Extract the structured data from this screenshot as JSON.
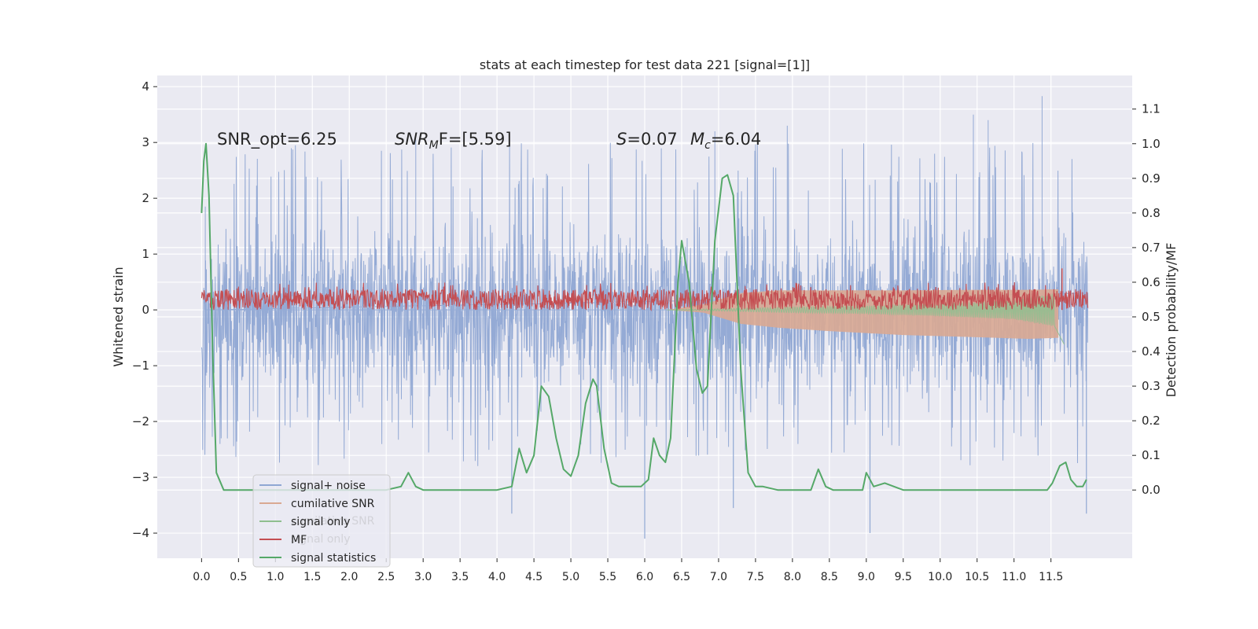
{
  "figure": {
    "background": "#ffffff",
    "axes_background": "#eaeaf2",
    "grid_color": "#ffffff",
    "text_color": "#262626"
  },
  "chart_data": {
    "type": "line",
    "title": "stats at each timestep for test data 221 [signal=[1]]",
    "xlabel": "",
    "ylabel_left": "Whitened strain",
    "ylabel_right": "Detection probability/MF",
    "xlim": [
      -0.6,
      12.6
    ],
    "ylim_left": [
      -4.45,
      4.2
    ],
    "ylim_right": [
      -0.197,
      1.197
    ],
    "x_ticks": [
      0.0,
      0.5,
      1.0,
      1.5,
      2.0,
      2.5,
      3.0,
      3.5,
      4.0,
      4.5,
      5.0,
      5.5,
      6.0,
      6.5,
      7.0,
      7.5,
      8.0,
      8.5,
      9.0,
      9.5,
      10.0,
      10.5,
      11.0,
      11.5
    ],
    "x_tick_labels": [
      "0.0",
      "0.5",
      "1.0",
      "1.5",
      "2.0",
      "2.5",
      "3.0",
      "3.5",
      "4.0",
      "4.5",
      "5.0",
      "5.5",
      "6.0",
      "6.5",
      "7.0",
      "7.5",
      "8.0",
      "8.5",
      "9.0",
      "9.5",
      "10.0",
      "10.5",
      "11.0",
      "11.5"
    ],
    "y_left_ticks": [
      4,
      3,
      2,
      1,
      0,
      -1,
      -2,
      -3,
      -4
    ],
    "y_left_tick_labels": [
      "4",
      "3",
      "2",
      "1",
      "0",
      "−1",
      "−2",
      "−3",
      "−4"
    ],
    "y_right_ticks": [
      1.1,
      1.0,
      0.9,
      0.8,
      0.7,
      0.6,
      0.5,
      0.4,
      0.3,
      0.2,
      0.1,
      0.0
    ],
    "y_right_tick_labels": [
      "1.1",
      "1.0",
      "0.9",
      "0.8",
      "0.7",
      "0.6",
      "0.5",
      "0.4",
      "0.3",
      "0.2",
      "0.1",
      "0.0"
    ],
    "grid": true,
    "legend_position": "lower-left",
    "legend": [
      {
        "label": "signal+ noise",
        "color": "#8fa7d3"
      },
      {
        "label": "cumilative SNR",
        "color": "#d9a992"
      },
      {
        "label": "signal only",
        "color": "#8fbf8f"
      },
      {
        "label": "MF",
        "color": "#c44e52"
      },
      {
        "label": "signal statistics",
        "color": "#55a868"
      }
    ],
    "legend_ghost_text": [
      "cumilative SNR",
      "signal only"
    ],
    "annotations": {
      "snr_opt": "SNR_opt=6.25",
      "snr_mf_sym": "SNR",
      "snr_mf_sub": "M",
      "snr_mf_rest": "F=[5.59]",
      "s_sym": "S",
      "s_rest": "=0.07",
      "mc_sym": "M",
      "mc_sub": "c",
      "mc_rest": "=6.04"
    },
    "series": [
      {
        "name": "signal+ noise",
        "color": "#8fa7d3",
        "x_range": [
          0.0,
          12.0
        ],
        "band_typical": [
          -1.8,
          2.1
        ],
        "spike_max": 3.83,
        "spike_min": -4.1,
        "notable_peaks": [
          [
            0.05,
            1.85
          ],
          [
            11.38,
            3.83
          ],
          [
            10.45,
            3.5
          ],
          [
            10.65,
            3.4
          ],
          [
            7.93,
            3.3
          ],
          [
            6.95,
            3.2
          ],
          [
            2.9,
            3.05
          ]
        ],
        "notable_troughs": [
          [
            6.0,
            -4.1
          ],
          [
            9.05,
            -4.0
          ],
          [
            4.2,
            -3.65
          ],
          [
            11.98,
            -3.65
          ],
          [
            7.2,
            -3.55
          ]
        ]
      },
      {
        "name": "cumilative SNR",
        "color": "#d9a992",
        "x": [
          6.3,
          6.8,
          7.3,
          7.8,
          8.5,
          9.5,
          10.5,
          11.2,
          11.6
        ],
        "y_upper": [
          0.0,
          0.1,
          0.3,
          0.35,
          0.35,
          0.35,
          0.36,
          0.36,
          0.37
        ],
        "y_lower": [
          0.0,
          -0.05,
          -0.25,
          -0.32,
          -0.38,
          -0.45,
          -0.49,
          -0.52,
          -0.5
        ]
      },
      {
        "name": "signal only",
        "color": "#8fbf8f",
        "x": [
          6.3,
          7.0,
          8.0,
          9.0,
          10.0,
          11.0,
          11.55,
          11.68
        ],
        "amplitude": [
          0.0,
          0.02,
          0.05,
          0.07,
          0.11,
          0.17,
          0.3,
          -0.62
        ]
      },
      {
        "name": "MF",
        "color": "#c44e52",
        "axis": "right",
        "x_range": [
          0.0,
          12.0
        ],
        "band": [
          0.52,
          0.58
        ],
        "peak": [
          11.65,
          0.64
        ]
      },
      {
        "name": "signal statistics",
        "color": "#55a868",
        "axis": "right",
        "x": [
          0.0,
          0.03,
          0.06,
          0.1,
          0.15,
          0.2,
          0.3,
          0.5,
          0.7,
          1.0,
          1.5,
          2.0,
          2.5,
          2.7,
          2.8,
          2.9,
          3.0,
          3.5,
          4.0,
          4.2,
          4.3,
          4.4,
          4.5,
          4.6,
          4.7,
          4.8,
          4.9,
          5.0,
          5.1,
          5.2,
          5.3,
          5.35,
          5.45,
          5.55,
          5.65,
          5.8,
          5.95,
          6.05,
          6.12,
          6.2,
          6.28,
          6.35,
          6.45,
          6.5,
          6.6,
          6.7,
          6.78,
          6.85,
          6.95,
          7.05,
          7.12,
          7.2,
          7.3,
          7.4,
          7.5,
          7.6,
          7.8,
          8.0,
          8.25,
          8.35,
          8.45,
          8.55,
          8.7,
          8.95,
          9.0,
          9.1,
          9.25,
          9.5,
          10.0,
          10.5,
          11.0,
          11.45,
          11.52,
          11.62,
          11.7,
          11.77,
          11.85,
          11.93,
          11.98
        ],
        "y": [
          0.8,
          0.95,
          1.0,
          0.85,
          0.4,
          0.05,
          0.0,
          0.0,
          0.0,
          0.0,
          0.0,
          0.0,
          0.0,
          0.01,
          0.05,
          0.01,
          0.0,
          0.0,
          0.0,
          0.01,
          0.12,
          0.05,
          0.1,
          0.3,
          0.27,
          0.15,
          0.06,
          0.04,
          0.1,
          0.25,
          0.32,
          0.3,
          0.12,
          0.02,
          0.01,
          0.01,
          0.01,
          0.03,
          0.15,
          0.1,
          0.08,
          0.15,
          0.6,
          0.72,
          0.6,
          0.35,
          0.28,
          0.3,
          0.72,
          0.9,
          0.91,
          0.85,
          0.35,
          0.05,
          0.01,
          0.01,
          0.0,
          0.0,
          0.0,
          0.06,
          0.01,
          0.0,
          0.0,
          0.0,
          0.05,
          0.01,
          0.02,
          0.0,
          0.0,
          0.0,
          0.0,
          0.0,
          0.02,
          0.07,
          0.08,
          0.03,
          0.01,
          0.01,
          0.03
        ]
      }
    ]
  }
}
